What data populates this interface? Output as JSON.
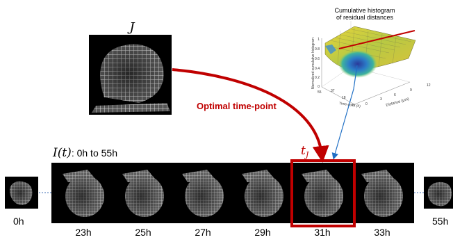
{
  "reference": {
    "symbol": "J"
  },
  "arrow_label": "Optimal time-point",
  "selected_symbol": "t",
  "selected_subscript": "J",
  "sequence": {
    "symbol": "I(t)",
    "range_text": ": 0h to 55h",
    "start_label": "0h",
    "end_label": "55h",
    "frames": [
      "23h",
      "25h",
      "27h",
      "29h",
      "31h",
      "33h"
    ],
    "selected_index": 4
  },
  "colors": {
    "arrow": "#c00000",
    "selection_box": "#c00000",
    "link_line": "#1f6fc5",
    "dotted": "#3f6fb5"
  },
  "chart_data": {
    "type": "surface",
    "title": "Cumulative histogram\nof residual distances",
    "zlabel": "Normalized cumulative histogram",
    "xlabel": "Distance  (μm)",
    "ylabel": "Time-point  (h)",
    "z_ticks": [
      "0",
      "0.2",
      "0.4",
      "0.6",
      "0.8",
      "1"
    ],
    "x_ticks": [
      "0",
      "3",
      "6",
      "9",
      "12"
    ],
    "y_ticks": [
      "0",
      "18",
      "37",
      "55"
    ],
    "zlim": [
      0,
      1
    ],
    "xlim": [
      0,
      12
    ],
    "ylim": [
      0,
      55
    ]
  }
}
